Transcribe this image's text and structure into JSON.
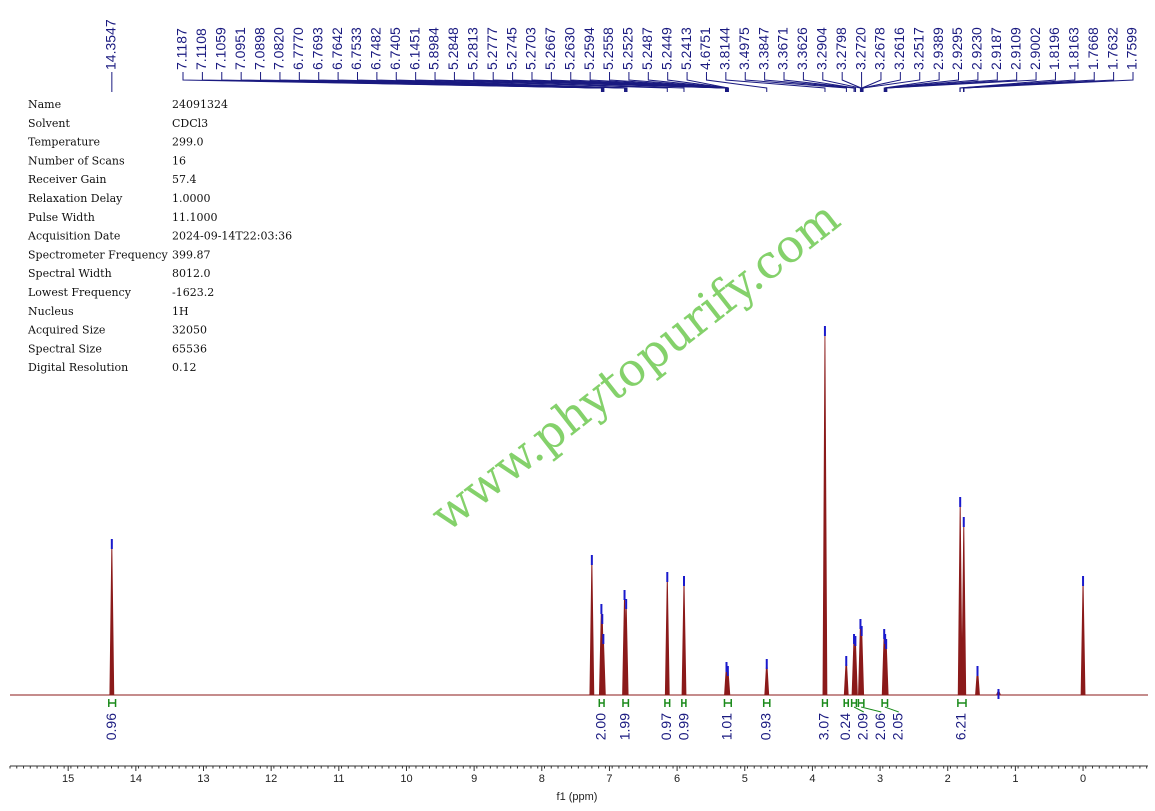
{
  "chart_data": {
    "type": "nmr",
    "xlabel": "f1 (ppm)",
    "xlim": [
      15.86,
      -0.96
    ],
    "xticks": [
      15,
      14,
      13,
      12,
      11,
      10,
      9,
      8,
      7,
      6,
      5,
      4,
      3,
      2,
      1,
      0
    ],
    "ylim": [
      0,
      400
    ],
    "color": "#8b1a1a",
    "watermark": "www.phytopurify.com",
    "parameters": [
      [
        "Name",
        "24091324"
      ],
      [
        "Solvent",
        "CDCl3"
      ],
      [
        "Temperature",
        "299.0"
      ],
      [
        "Number of Scans",
        "16"
      ],
      [
        "Receiver Gain",
        "57.4"
      ],
      [
        "Relaxation Delay",
        "1.0000"
      ],
      [
        "Pulse Width",
        "11.1000"
      ],
      [
        "Acquisition Date",
        "2024-09-14T22:03:36"
      ],
      [
        "Spectrometer Frequency",
        "399.87"
      ],
      [
        "Spectral Width",
        "8012.0"
      ],
      [
        "Lowest Frequency",
        "-1623.2"
      ],
      [
        "Nucleus",
        "1H"
      ],
      [
        "Acquired Size",
        "32050"
      ],
      [
        "Spectral Size",
        "65536"
      ],
      [
        "Digital Resolution",
        "0.12"
      ]
    ],
    "isolated_peak": {
      "value": 14.3547,
      "label": "14.3547"
    },
    "peak_labels": [
      {
        "value": 7.1187,
        "label": "7.1187"
      },
      {
        "value": 7.1108,
        "label": "7.1108"
      },
      {
        "value": 7.1059,
        "label": "7.1059"
      },
      {
        "value": 7.0951,
        "label": "7.0951"
      },
      {
        "value": 7.0898,
        "label": "7.0898"
      },
      {
        "value": 7.082,
        "label": "7.0820"
      },
      {
        "value": 6.777,
        "label": "6.7770"
      },
      {
        "value": 6.7693,
        "label": "6.7693"
      },
      {
        "value": 6.7642,
        "label": "6.7642"
      },
      {
        "value": 6.7533,
        "label": "6.7533"
      },
      {
        "value": 6.7482,
        "label": "6.7482"
      },
      {
        "value": 6.7405,
        "label": "6.7405"
      },
      {
        "value": 6.1451,
        "label": "6.1451"
      },
      {
        "value": 5.8984,
        "label": "5.8984"
      },
      {
        "value": 5.2848,
        "label": "5.2848"
      },
      {
        "value": 5.2813,
        "label": "5.2813"
      },
      {
        "value": 5.2777,
        "label": "5.2777"
      },
      {
        "value": 5.2745,
        "label": "5.2745"
      },
      {
        "value": 5.2703,
        "label": "5.2703"
      },
      {
        "value": 5.2667,
        "label": "5.2667"
      },
      {
        "value": 5.263,
        "label": "5.2630"
      },
      {
        "value": 5.2594,
        "label": "5.2594"
      },
      {
        "value": 5.2558,
        "label": "5.2558"
      },
      {
        "value": 5.2525,
        "label": "5.2525"
      },
      {
        "value": 5.2487,
        "label": "5.2487"
      },
      {
        "value": 5.2449,
        "label": "5.2449"
      },
      {
        "value": 5.2413,
        "label": "5.2413"
      },
      {
        "value": 4.6751,
        "label": "4.6751"
      },
      {
        "value": 3.8144,
        "label": "3.8144"
      },
      {
        "value": 3.4975,
        "label": "3.4975"
      },
      {
        "value": 3.3847,
        "label": "3.3847"
      },
      {
        "value": 3.3671,
        "label": "3.3671"
      },
      {
        "value": 3.3626,
        "label": "3.3626"
      },
      {
        "value": 3.2904,
        "label": "3.2904"
      },
      {
        "value": 3.2798,
        "label": "3.2798"
      },
      {
        "value": 3.272,
        "label": "3.2720"
      },
      {
        "value": 3.2678,
        "label": "3.2678"
      },
      {
        "value": 3.2616,
        "label": "3.2616"
      },
      {
        "value": 3.2517,
        "label": "3.2517"
      },
      {
        "value": 2.9389,
        "label": "2.9389"
      },
      {
        "value": 2.9295,
        "label": "2.9295"
      },
      {
        "value": 2.923,
        "label": "2.9230"
      },
      {
        "value": 2.9187,
        "label": "2.9187"
      },
      {
        "value": 2.9109,
        "label": "2.9109"
      },
      {
        "value": 2.9002,
        "label": "2.9002"
      },
      {
        "value": 1.8196,
        "label": "1.8196"
      },
      {
        "value": 1.8163,
        "label": "1.8163"
      },
      {
        "value": 1.7668,
        "label": "1.7668"
      },
      {
        "value": 1.7632,
        "label": "1.7632"
      },
      {
        "value": 1.7599,
        "label": "1.7599"
      }
    ],
    "signals": {
      "x": [
        14.355,
        7.26,
        7.119,
        7.106,
        7.09,
        6.777,
        6.753,
        6.145,
        5.898,
        5.27,
        5.25,
        4.675,
        3.815,
        3.5,
        3.385,
        3.365,
        3.29,
        3.272,
        2.939,
        2.925,
        2.91,
        1.816,
        1.763,
        1.56,
        1.25,
        0
      ],
      "values": [
        155,
        139,
        90,
        80,
        60,
        104,
        95,
        122,
        118,
        32,
        28,
        35,
        368,
        38,
        60,
        58,
        75,
        68,
        65,
        60,
        55,
        197,
        177,
        28,
        5,
        118
      ]
    },
    "integrals": [
      {
        "from": 14.4,
        "to": 14.3,
        "value": 0.96,
        "label": "0.96"
      },
      {
        "from": 7.15,
        "to": 7.08,
        "value": 2.0,
        "label": "2.00"
      },
      {
        "from": 6.8,
        "to": 6.72,
        "value": 1.99,
        "label": "1.99"
      },
      {
        "from": 6.18,
        "to": 6.11,
        "value": 0.97,
        "label": "0.97"
      },
      {
        "from": 5.93,
        "to": 5.87,
        "value": 0.99,
        "label": "0.99"
      },
      {
        "from": 5.3,
        "to": 5.2,
        "value": 1.01,
        "label": "1.01"
      },
      {
        "from": 4.72,
        "to": 4.63,
        "value": 0.93,
        "label": "0.93"
      },
      {
        "from": 3.85,
        "to": 3.78,
        "value": 3.07,
        "label": "3.07"
      },
      {
        "from": 3.53,
        "to": 3.47,
        "value": 0.24,
        "label": "0.24"
      },
      {
        "from": 3.42,
        "to": 3.35,
        "value": 2.09,
        "label": "2.09"
      },
      {
        "from": 3.32,
        "to": 3.24,
        "value": 2.06,
        "label": "2.06"
      },
      {
        "from": 2.97,
        "to": 2.89,
        "value": 2.05,
        "label": "2.05"
      },
      {
        "from": 1.85,
        "to": 1.73,
        "value": 6.21,
        "label": "6.21"
      }
    ]
  }
}
